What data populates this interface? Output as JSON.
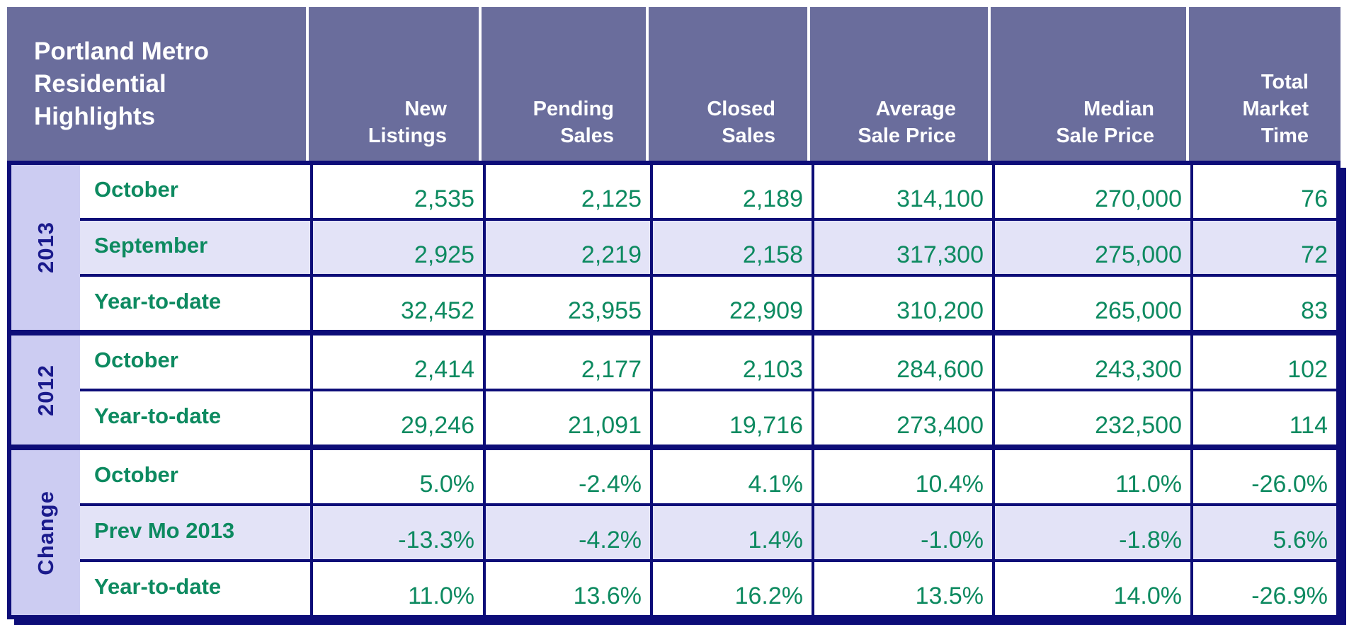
{
  "header": {
    "title": "Portland Metro\nResidential\nHighlights",
    "columns": [
      "New\nListings",
      "Pending\nSales",
      "Closed\nSales",
      "Average\nSale Price",
      "Median\nSale Price",
      "Total\nMarket\nTime"
    ]
  },
  "chart_data": {
    "type": "table",
    "title": "Portland Metro Residential Highlights",
    "columns": [
      "New Listings",
      "Pending Sales",
      "Closed Sales",
      "Average Sale Price",
      "Median Sale Price",
      "Total Market Time"
    ],
    "sections": [
      {
        "group": "2013",
        "rows": [
          {
            "label": "October",
            "values": [
              "2,535",
              "2,125",
              "2,189",
              "314,100",
              "270,000",
              "76"
            ]
          },
          {
            "label": "September",
            "values": [
              "2,925",
              "2,219",
              "2,158",
              "317,300",
              "275,000",
              "72"
            ]
          },
          {
            "label": "Year-to-date",
            "values": [
              "32,452",
              "23,955",
              "22,909",
              "310,200",
              "265,000",
              "83"
            ]
          }
        ]
      },
      {
        "group": "2012",
        "rows": [
          {
            "label": "October",
            "values": [
              "2,414",
              "2,177",
              "2,103",
              "284,600",
              "243,300",
              "102"
            ]
          },
          {
            "label": "Year-to-date",
            "values": [
              "29,246",
              "21,091",
              "19,716",
              "273,400",
              "232,500",
              "114"
            ]
          }
        ]
      },
      {
        "group": "Change",
        "rows": [
          {
            "label": "October",
            "values": [
              "5.0%",
              "-2.4%",
              "4.1%",
              "10.4%",
              "11.0%",
              "-26.0%"
            ]
          },
          {
            "label": "Prev Mo 2013",
            "values": [
              "-13.3%",
              "-4.2%",
              "1.4%",
              "-1.0%",
              "-1.8%",
              "5.6%"
            ]
          },
          {
            "label": "Year-to-date",
            "values": [
              "11.0%",
              "13.6%",
              "16.2%",
              "13.5%",
              "14.0%",
              "-26.9%"
            ]
          }
        ]
      }
    ]
  },
  "colors": {
    "header_bg": "#6A6D9C",
    "header_text": "#FFFFFF",
    "border_navy": "#0D0D78",
    "value_green": "#0D8A60",
    "group_text": "#1A1A8C",
    "group_strip_bg": "#CCCCF2",
    "row_bg": "#FFFFFF",
    "row_alt_bg": "#E3E3F7"
  }
}
